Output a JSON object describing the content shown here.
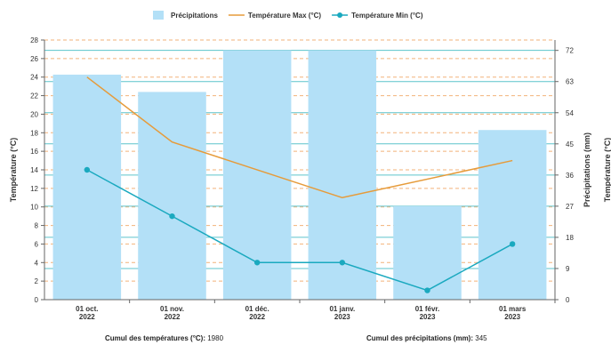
{
  "chart_data": {
    "type": "bar",
    "categories": [
      [
        "01 oct.",
        "2022"
      ],
      [
        "01 nov.",
        "2022"
      ],
      [
        "01 déc.",
        "2022"
      ],
      [
        "01 janv.",
        "2023"
      ],
      [
        "01 févr.",
        "2023"
      ],
      [
        "01 mars",
        "2023"
      ]
    ],
    "series": [
      {
        "name": "Précipitations",
        "type": "bar",
        "axis": "right",
        "color": "#b3e0f7",
        "values": [
          65,
          60,
          72,
          72,
          27,
          49
        ]
      },
      {
        "name": "Température Max (°C)",
        "type": "line",
        "axis": "left",
        "color": "#e69b3a",
        "values": [
          24,
          17,
          null,
          11,
          null,
          15
        ]
      },
      {
        "name": "Température Min (°C)",
        "type": "line",
        "axis": "left",
        "color": "#1aa9bf",
        "values": [
          14,
          9,
          4,
          4,
          1,
          6
        ]
      }
    ],
    "y_left": {
      "label": "Température (°C)",
      "min": 0,
      "max": 28,
      "ticks": [
        0,
        2,
        4,
        6,
        8,
        10,
        12,
        14,
        16,
        18,
        20,
        22,
        24,
        26,
        28
      ]
    },
    "y_right": {
      "label": "Précipitations (mm)",
      "min": 0,
      "max": 75,
      "ticks": [
        0,
        9,
        18,
        27,
        36,
        45,
        54,
        63,
        72
      ]
    },
    "y_right_outer_label": "Température (°C)",
    "grid": true,
    "legend_position": "top-center"
  },
  "footer": {
    "temp_label": "Cumul des températures (°C):",
    "temp_value": "1980",
    "precip_label": "Cumul des précipitations (mm):",
    "precip_value": "345"
  }
}
